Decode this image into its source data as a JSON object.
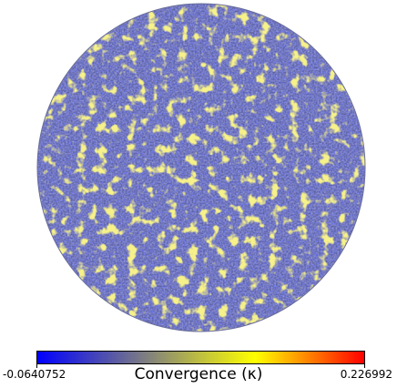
{
  "figure": {
    "projection": "orthographic",
    "colormap": {
      "stops": [
        "#0000ff",
        "#7f7f7f",
        "#ffff00",
        "#ff0000"
      ],
      "background": "#ffffff"
    },
    "map_base_color": "#5a5fa6"
  },
  "colorbar": {
    "min_label": "-0.0640752",
    "max_label": "0.226992",
    "title": "Convergence (κ)"
  }
}
